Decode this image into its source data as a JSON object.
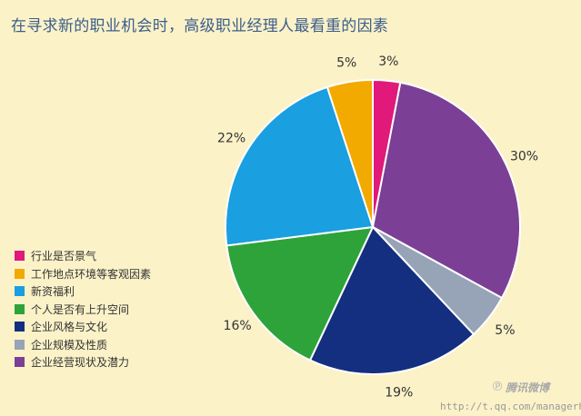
{
  "colors": {
    "background": "#fbf2c8",
    "title": "#3b5e8a"
  },
  "chart_data": {
    "type": "pie",
    "title": "在寻求新的职业机会时，高级职业经理人最看重的因素",
    "legend_position": "left",
    "categories": [
      "行业是否景气",
      "工作地点环境等客观因素",
      "新资福利",
      "个人是否有上升空间",
      "企业风格与文化",
      "企业规模及性质",
      "企业经营现状及潜力"
    ],
    "values": [
      3,
      5,
      22,
      16,
      19,
      5,
      30
    ],
    "labels": [
      "3%",
      "5%",
      "22%",
      "16%",
      "19%",
      "5%",
      "30%"
    ],
    "colors": [
      "#e0197b",
      "#f2a900",
      "#1a9fe0",
      "#2ea33a",
      "#142f7f",
      "#97a3b6",
      "#7b3f96"
    ],
    "slice_order_clockwise_from_top": [
      0,
      6,
      5,
      4,
      3,
      2,
      1
    ]
  },
  "watermark": {
    "brand": "腾讯微博",
    "url": "http://t.qq.com/managerhr"
  }
}
